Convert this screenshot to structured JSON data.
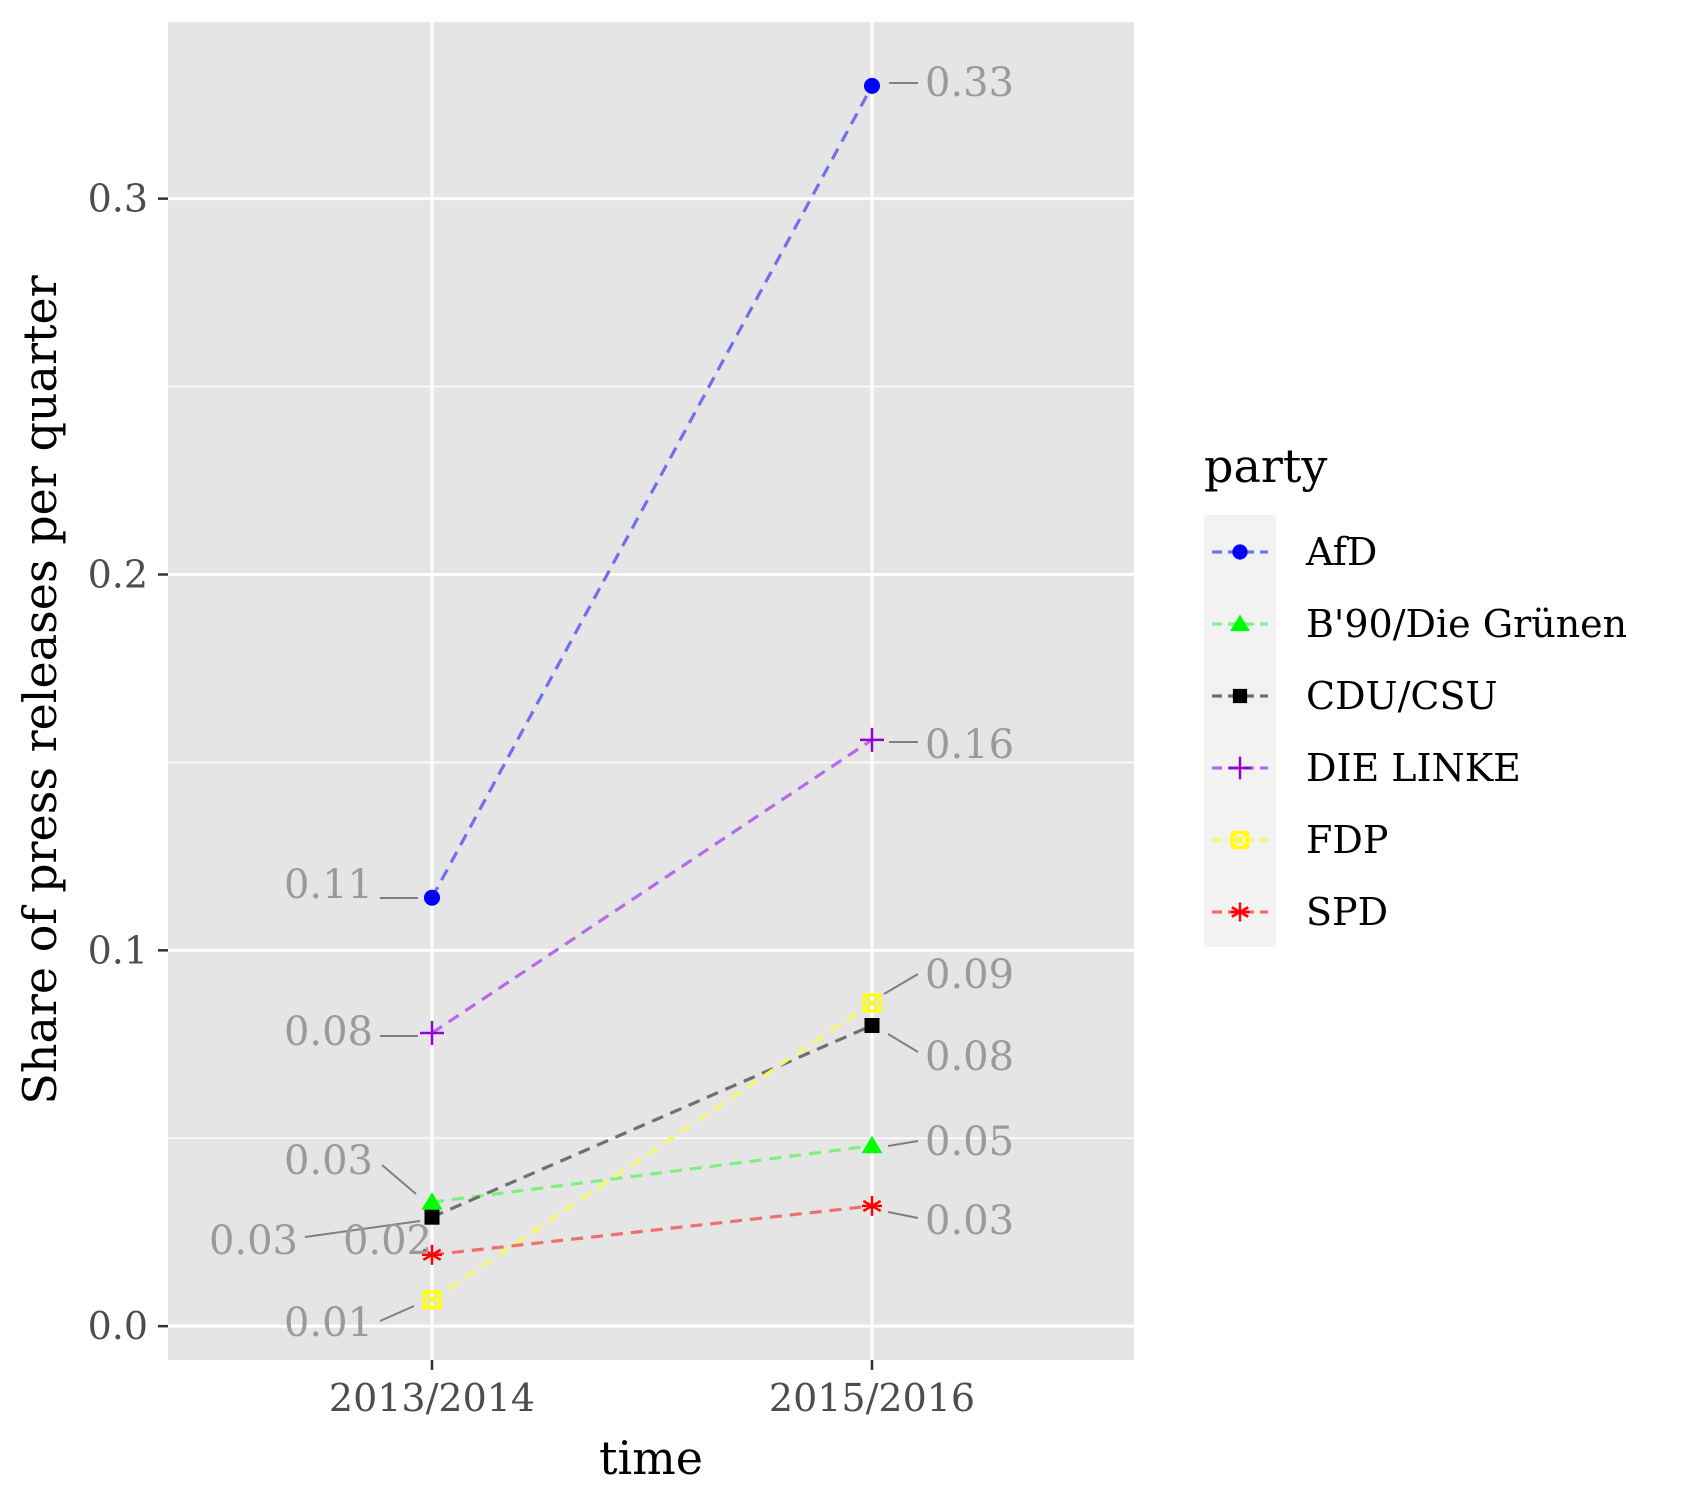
{
  "chart_data": {
    "type": "line",
    "xlabel": "time",
    "ylabel": "Share of press releases per quarter",
    "categories": [
      "2013/2014",
      "2015/2016"
    ],
    "y_ticks": [
      "0.0",
      "0.1",
      "0.2",
      "0.3"
    ],
    "ylim": [
      -0.009,
      0.347
    ],
    "grid": true,
    "legend": {
      "title": "party",
      "position": "right"
    },
    "series": [
      {
        "name": "AfD",
        "values": [
          0.114,
          0.33
        ],
        "labels": [
          "0.11",
          "0.33"
        ],
        "color": "#0000ff",
        "line_color": "#6f6ff0",
        "marker": "circle"
      },
      {
        "name": "B'90/Die Grünen",
        "values": [
          0.033,
          0.048
        ],
        "labels": [
          "0.03",
          "0.05"
        ],
        "color": "#00ff00",
        "line_color": "#7ff07f",
        "marker": "triangle"
      },
      {
        "name": "CDU/CSU",
        "values": [
          0.029,
          0.08
        ],
        "labels": [
          "0.03",
          "0.08"
        ],
        "color": "#000000",
        "line_color": "#6f6f6f",
        "marker": "square"
      },
      {
        "name": "DIE LINKE",
        "values": [
          0.078,
          0.156
        ],
        "labels": [
          "0.08",
          "0.16"
        ],
        "color": "#9400d3",
        "line_color": "#b56ae6",
        "marker": "plus"
      },
      {
        "name": "FDP",
        "values": [
          0.007,
          0.086
        ],
        "labels": [
          "0.01",
          "0.09"
        ],
        "color": "#ffff00",
        "line_color": "#f7f76a",
        "marker": "square-cross"
      },
      {
        "name": "SPD",
        "values": [
          0.019,
          0.032
        ],
        "labels": [
          "0.02",
          "0.03"
        ],
        "color": "#ff0000",
        "line_color": "#ee6f6f",
        "marker": "asterisk"
      }
    ]
  }
}
